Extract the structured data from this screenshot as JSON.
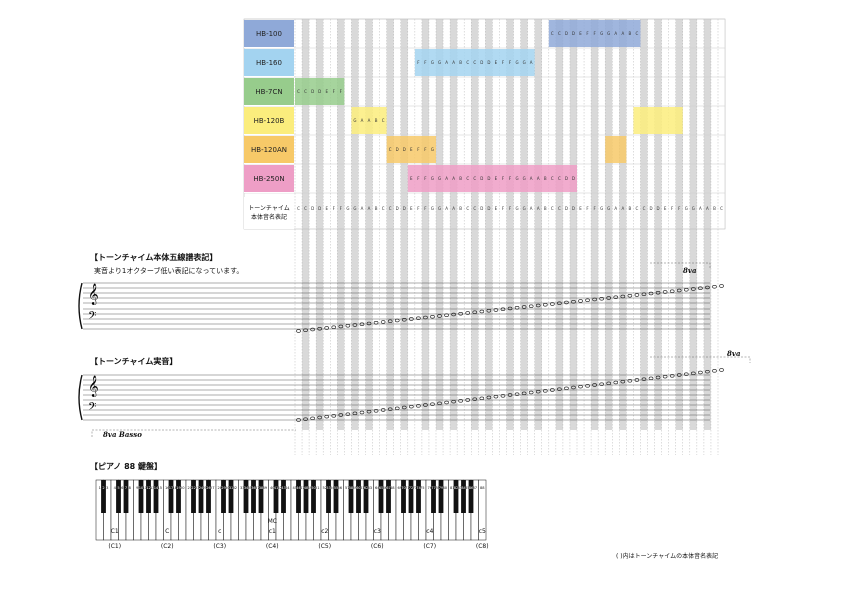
{
  "rows": [
    {
      "label": "HB-100",
      "color": "#8fa9d8",
      "range": [
        64,
        76
      ]
    },
    {
      "label": "HB-160",
      "color": "#a3d3f0",
      "range": [
        45,
        61
      ]
    },
    {
      "label": "HB-7CN",
      "color": "#97cc8c",
      "range": [
        28,
        34
      ]
    },
    {
      "label": "HB-120B",
      "color": "#fbed7d",
      "range": [
        36,
        40
      ]
    },
    {
      "label": "HB-120AN",
      "color": "#f7c968",
      "range": [
        41,
        47
      ]
    },
    {
      "label": "HB-250N",
      "color": "#ee9ec6",
      "range": [
        44,
        67
      ]
    }
  ],
  "extra_ranges": [
    {
      "row": 3,
      "range": [
        76,
        82
      ],
      "color": "#fbed7d"
    },
    {
      "row": 4,
      "range": [
        72,
        74
      ],
      "color": "#f7c968"
    }
  ],
  "body_notation": {
    "line1": "トーンチャイム",
    "line2": "本体音名表記"
  },
  "section_staff1": {
    "title": "【トーンチャイム本体五線譜表記】",
    "subtitle": "実音より1オクターブ低い表記になっています。",
    "octave": "8va"
  },
  "section_staff2": {
    "title": "【トーンチャイム実音】",
    "octave_upper": "8va",
    "octave_lower": "8va Basso"
  },
  "section_piano": {
    "title": "【ピアノ 88 鍵盤】",
    "keys": 88
  },
  "piano_labels": [
    {
      "text": "C1",
      "key": 4
    },
    {
      "text": "C",
      "key": 16
    },
    {
      "text": "c",
      "key": 28
    },
    {
      "text": "MC",
      "key": 40,
      "top": true
    },
    {
      "text": "c1",
      "key": 40
    },
    {
      "text": "c2",
      "key": 52
    },
    {
      "text": "c3",
      "key": 64
    },
    {
      "text": "c4",
      "key": 76
    },
    {
      "text": "c5",
      "key": 88
    }
  ],
  "chime_labels": [
    {
      "text": "(C1)",
      "key": 4
    },
    {
      "text": "(C2)",
      "key": 16
    },
    {
      "text": "(C3)",
      "key": 28
    },
    {
      "text": "(C4)",
      "key": 40
    },
    {
      "text": "(C5)",
      "key": 52
    },
    {
      "text": "(C6)",
      "key": 64
    },
    {
      "text": "(C7)",
      "key": 76
    },
    {
      "text": "(C8)",
      "key": 88
    }
  ],
  "footnote": "( )内はトーンチャイムの本体音名表記",
  "range_keys": [
    28,
    82
  ]
}
